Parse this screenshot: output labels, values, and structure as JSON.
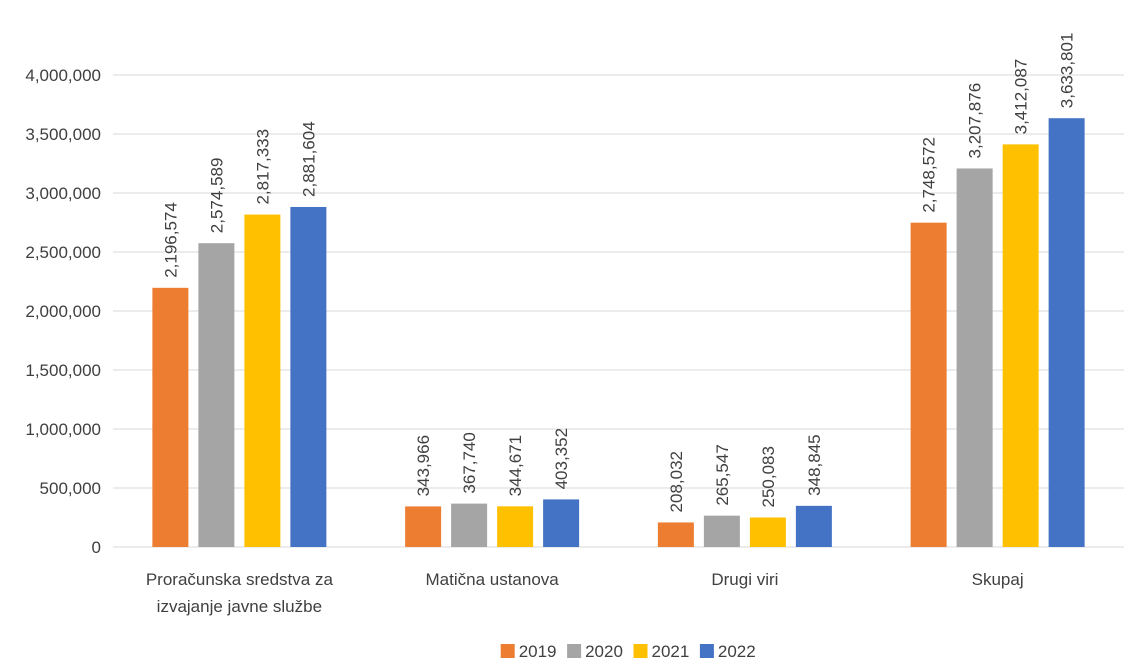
{
  "chart_data": {
    "type": "bar",
    "title": "",
    "xlabel": "",
    "ylabel": "",
    "categories": [
      [
        "Proračunska sredstva za",
        "izvajanje javne službe"
      ],
      [
        "Matična ustanova"
      ],
      [
        "Drugi viri"
      ],
      [
        "Skupaj"
      ]
    ],
    "series": [
      {
        "name": "2019",
        "color": "#ED7D31",
        "values": [
          2196574,
          343966,
          208032,
          2748572
        ],
        "labels": [
          "2,196,574",
          "343,966",
          "208,032",
          "2,748,572"
        ]
      },
      {
        "name": "2020",
        "color": "#A5A5A5",
        "values": [
          2574589,
          367740,
          265547,
          3207876
        ],
        "labels": [
          "2,574,589",
          "367,740",
          "265,547",
          "3,207,876"
        ]
      },
      {
        "name": "2021",
        "color": "#FFC000",
        "values": [
          2817333,
          344671,
          250083,
          3412087
        ],
        "labels": [
          "2,817,333",
          "344,671",
          "250,083",
          "3,412,087"
        ]
      },
      {
        "name": "2022",
        "color": "#4472C4",
        "values": [
          2881604,
          403352,
          348845,
          3633801
        ],
        "labels": [
          "2,881,604",
          "403,352",
          "348,845",
          "3,633,801"
        ]
      }
    ],
    "ylim": [
      0,
      4000000
    ],
    "yticks": [
      0,
      500000,
      1000000,
      1500000,
      2000000,
      2500000,
      3000000,
      3500000,
      4000000
    ],
    "ytick_labels": [
      "0",
      "500,000",
      "1,000,000",
      "1,500,000",
      "2,000,000",
      "2,500,000",
      "3,000,000",
      "3,500,000",
      "4,000,000"
    ],
    "grid": true,
    "legend": "bottom"
  }
}
